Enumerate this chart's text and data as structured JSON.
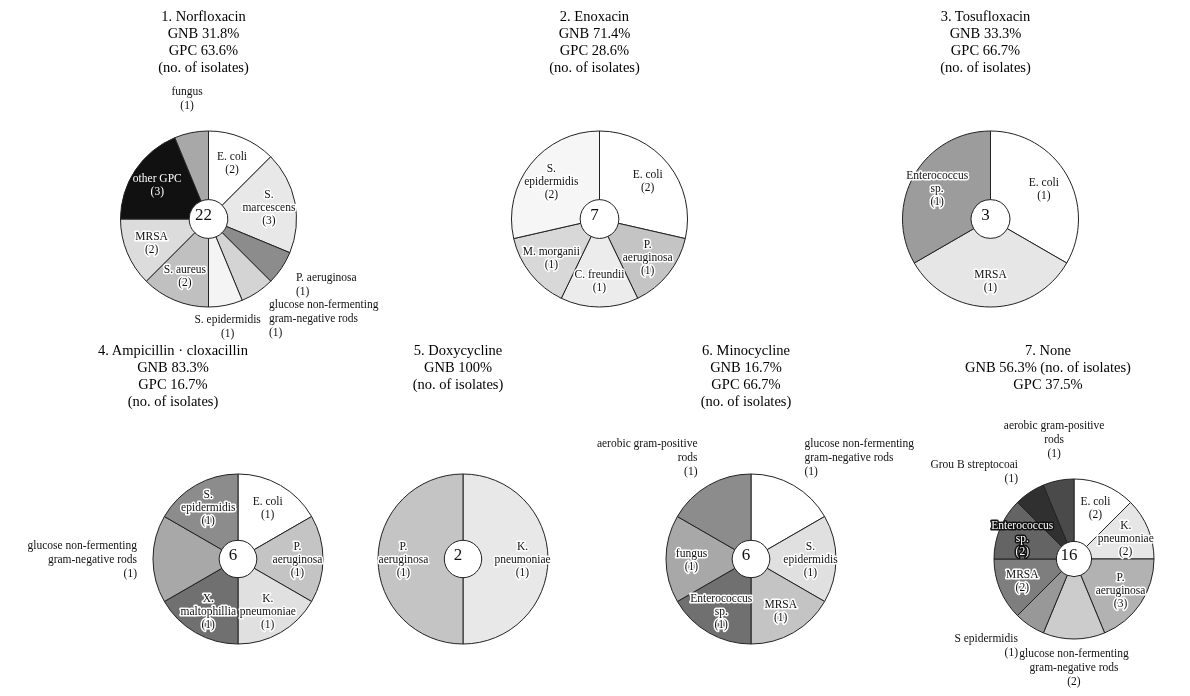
{
  "chart_data": [
    {
      "type": "donut",
      "title": "1.  Norfloxacin",
      "subtitle": "GNB 31.8%\nGPC 63.6%\n(no. of isolates)",
      "annotations": [
        "22"
      ],
      "categories": [
        "E. coli",
        "S. marcescens",
        "P. aeruginosa",
        "glucose non-fermenting gram-negative rods",
        "S. epidermidis",
        "S. aureus",
        "MRSA",
        "other GPC",
        "fungus"
      ],
      "values": [
        2,
        3,
        1,
        1,
        1,
        2,
        2,
        3,
        1
      ],
      "value_labels": [
        "(2)",
        "(3)",
        "(1)",
        "(1)",
        "(1)",
        "(2)",
        "(2)",
        "(3)",
        "(1)"
      ],
      "colors": [
        "#ffffff",
        "#e8e8e8",
        "#8c8c8c",
        "#d4d4d4",
        "#f4f4f4",
        "#c0c0c0",
        "#dcdcdc",
        "#111111",
        "#a8a8a8"
      ]
    },
    {
      "type": "donut",
      "title": "2.  Enoxacin",
      "subtitle": "GNB 71.4%\nGPC 28.6%\n(no. of isolates)",
      "annotations": [
        "7"
      ],
      "categories": [
        "E. coli",
        "P. aeruginosa",
        "C. freundii",
        "M. morganii",
        "S. epidermidis"
      ],
      "values": [
        2,
        1,
        1,
        1,
        2
      ],
      "value_labels": [
        "(2)",
        "(1)",
        "(1)",
        "(1)",
        "(2)"
      ],
      "colors": [
        "#ffffff",
        "#c4c4c4",
        "#ececec",
        "#d8d8d8",
        "#f6f6f6"
      ]
    },
    {
      "type": "donut",
      "title": "3.  Tosufloxacin",
      "subtitle": "GNB 33.3%\nGPC 66.7%\n(no. of isolates)",
      "annotations": [
        "3"
      ],
      "categories": [
        "E. coli",
        "MRSA",
        "Enterococcus sp."
      ],
      "values": [
        1,
        1,
        1
      ],
      "value_labels": [
        "(1)",
        "(1)",
        "(1)"
      ],
      "colors": [
        "#ffffff",
        "#e6e6e6",
        "#9c9c9c"
      ]
    },
    {
      "type": "donut",
      "title": "4.  Ampicillin · cloxacillin",
      "subtitle": "GNB 83.3%\nGPC 16.7%\n(no. of isolates)",
      "annotations": [
        "6"
      ],
      "categories": [
        "E. coli",
        "P. aeruginosa",
        "K. pneumoniae",
        "X. maltophillia",
        "glucose non-fermenting gram-negative rods",
        "S. epidermidis"
      ],
      "values": [
        1,
        1,
        1,
        1,
        1,
        1
      ],
      "value_labels": [
        "(1)",
        "(1)",
        "(1)",
        "(1)",
        "(1)",
        "(1)"
      ],
      "colors": [
        "#ffffff",
        "#c4c4c4",
        "#e0e0e0",
        "#707070",
        "#a8a8a8",
        "#8c8c8c"
      ]
    },
    {
      "type": "donut",
      "title": "5.  Doxycycline",
      "subtitle": "GNB 100%\n(no. of isolates)",
      "annotations": [
        "2"
      ],
      "categories": [
        "K. pneumoniae",
        "P. aeruginosa"
      ],
      "values": [
        1,
        1
      ],
      "value_labels": [
        "(1)",
        "(1)"
      ],
      "colors": [
        "#e8e8e8",
        "#c4c4c4"
      ]
    },
    {
      "type": "donut",
      "title": "6.  Minocycline",
      "subtitle": "GNB 16.7%\nGPC 66.7%\n(no. of isolates)",
      "annotations": [
        "6"
      ],
      "categories": [
        "glucose non-fermenting gram-negative rods",
        "S. epidermidis",
        "MRSA",
        "Enterococcus sp.",
        "fungus",
        "aerobic gram-positive rods"
      ],
      "values": [
        1,
        1,
        1,
        1,
        1,
        1
      ],
      "value_labels": [
        "(1)",
        "(1)",
        "(1)",
        "(1)",
        "(1)",
        "(1)"
      ],
      "colors": [
        "#ffffff",
        "#e0e0e0",
        "#c4c4c4",
        "#707070",
        "#a8a8a8",
        "#8c8c8c"
      ]
    },
    {
      "type": "donut",
      "title": "7.  None",
      "subtitle": "GNB 56.3%  (no. of isolates)\nGPC 37.5%",
      "annotations": [
        "16"
      ],
      "categories": [
        "E. coli",
        "K. pneumoniae",
        "P. aeruginosa",
        "glucose non-fermenting gram-negative rods",
        "S epidermidis",
        "MRSA",
        "Enterococcus sp.",
        "Grou B streptocoai",
        "aerobic gram-positive rods"
      ],
      "values": [
        2,
        2,
        3,
        2,
        1,
        2,
        2,
        1,
        1
      ],
      "value_labels": [
        "(2)",
        "(2)",
        "(3)",
        "(2)",
        "(1)",
        "(2)",
        "(2)",
        "(1)",
        "(1)"
      ],
      "colors": [
        "#ffffff",
        "#e6e6e6",
        "#b2b2b2",
        "#cccccc",
        "#989898",
        "#7e7e7e",
        "#646464",
        "#303030",
        "#4a4a4a"
      ]
    }
  ]
}
